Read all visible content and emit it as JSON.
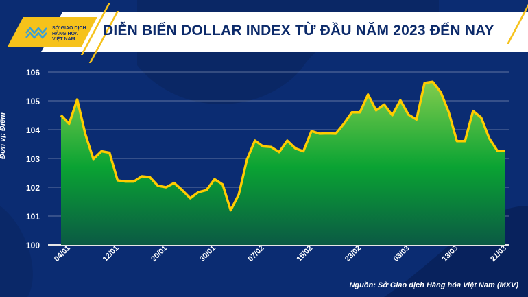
{
  "header": {
    "title": "DIỄN BIẾN DOLLAR INDEX TỪ ĐẦU NĂM 2023 ĐẾN NAY",
    "logo_lines": [
      "SỞ GIAO DỊCH",
      "HÀNG HÓA",
      "VIỆT NAM"
    ]
  },
  "source": "Nguồn: Sở Giao dịch Hàng hóa Việt Nam (MXV)",
  "colors": {
    "background": "#0b2c72",
    "line": "#ffcc00",
    "fill_top": "#8fd150",
    "fill_mid": "#0aa333",
    "fill_bottom": "#0b5a44",
    "accent": "#f6c21b"
  },
  "chart_data": {
    "type": "area",
    "title": "DIỄN BIẾN DOLLAR INDEX TỪ ĐẦU NĂM 2023 ĐẾN NAY",
    "ylabel": "Đơn vị: Điểm",
    "xlabel": "",
    "ylim": [
      100,
      106
    ],
    "yticks": [
      100,
      101,
      102,
      103,
      104,
      105,
      106
    ],
    "grid": true,
    "xtick_labels": [
      "04/01",
      "12/01",
      "20/01",
      "30/01",
      "07/02",
      "15/02",
      "23/02",
      "03/03",
      "13/03",
      "21/03"
    ],
    "xtick_every": 6,
    "values": [
      104.5,
      104.2,
      105.05,
      103.85,
      102.98,
      103.25,
      103.2,
      102.24,
      102.2,
      102.2,
      102.38,
      102.35,
      102.05,
      102.0,
      102.15,
      101.9,
      101.62,
      101.83,
      101.9,
      102.28,
      102.1,
      101.2,
      101.75,
      102.95,
      103.62,
      103.42,
      103.4,
      103.22,
      103.62,
      103.35,
      103.25,
      103.95,
      103.86,
      103.87,
      103.86,
      104.2,
      104.6,
      104.6,
      105.22,
      104.67,
      104.87,
      104.5,
      105.02,
      104.52,
      104.35,
      105.62,
      105.66,
      105.3,
      104.6,
      103.6,
      103.6,
      104.65,
      104.42,
      103.7,
      103.27,
      103.26
    ]
  }
}
